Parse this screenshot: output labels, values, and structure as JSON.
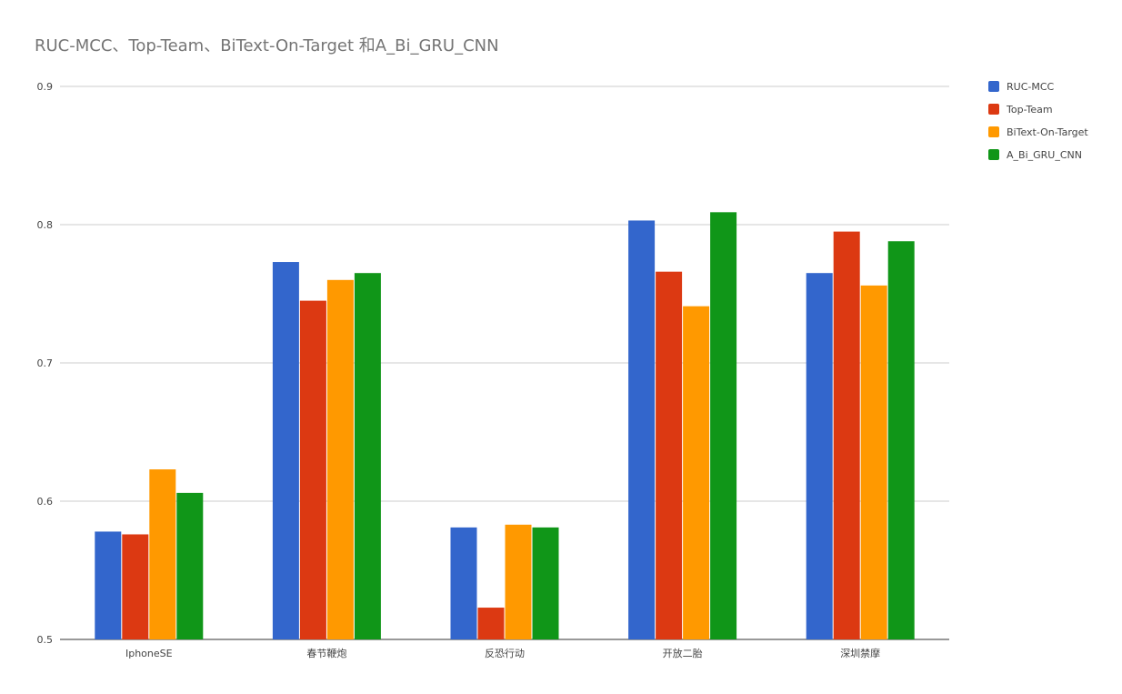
{
  "chart_data": {
    "type": "bar",
    "title": "RUC-MCC、Top-Team、BiText-On-Target 和A_Bi_GRU_CNN",
    "xlabel": "",
    "ylabel": "",
    "categories": [
      "IphoneSE",
      "春节鞭炮",
      "反恐行动",
      "开放二胎",
      "深圳禁摩"
    ],
    "series": [
      {
        "name": "RUC-MCC",
        "color": "#3366cc",
        "values": [
          0.578,
          0.773,
          0.581,
          0.803,
          0.765
        ]
      },
      {
        "name": "Top-Team",
        "color": "#dc3912",
        "values": [
          0.576,
          0.745,
          0.523,
          0.766,
          0.795
        ]
      },
      {
        "name": "BiText-On-Target",
        "color": "#ff9900",
        "values": [
          0.623,
          0.76,
          0.583,
          0.741,
          0.756
        ]
      },
      {
        "name": "A_Bi_GRU_CNN",
        "color": "#109618",
        "values": [
          0.606,
          0.765,
          0.581,
          0.809,
          0.788
        ]
      }
    ],
    "ylim": [
      0.5,
      0.9
    ],
    "yticks": [
      "0.5",
      "0.6",
      "0.7",
      "0.8",
      "0.9"
    ],
    "grid": true,
    "legend_position": "right"
  }
}
